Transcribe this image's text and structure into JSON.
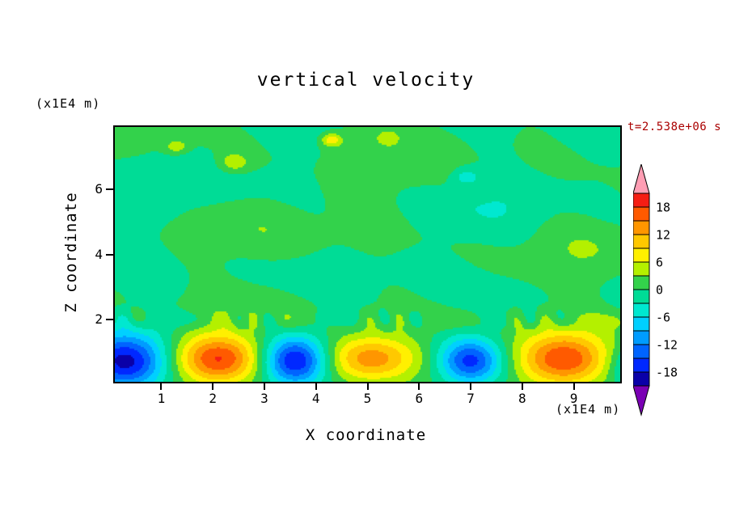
{
  "chart": {
    "title": "vertical velocity",
    "timestamp": "t=2.538e+06 s",
    "xlabel": "X coordinate",
    "ylabel": "Z coordinate",
    "x_unit": "(x1E4 m)",
    "y_unit": "(x1E4 m)"
  },
  "colors": {
    "timestamp": "#aa0000",
    "axis": "#000000",
    "frame": "#000000",
    "background": "#ffffff"
  },
  "chart_data": {
    "type": "heatmap",
    "subtype": "filled-contour",
    "title": "vertical velocity",
    "time_label": "t=2.538e+06 s",
    "xlabel": "X coordinate (x1E4 m)",
    "ylabel": "Z coordinate (x1E4 m)",
    "xlim": [
      0.1,
      9.9
    ],
    "ylim": [
      0.1,
      7.9
    ],
    "x_ticks": [
      1,
      2,
      3,
      4,
      5,
      6,
      7,
      8,
      9
    ],
    "y_ticks": [
      2,
      4,
      6
    ],
    "contour_interval": 3,
    "value_range": [
      -21,
      21
    ],
    "colorbar_labels": [
      18,
      12,
      6,
      0,
      -6,
      -12,
      -18
    ],
    "palette": [
      "#7a00b4",
      "#0a00a8",
      "#0028ff",
      "#0064ff",
      "#009cff",
      "#00d0ff",
      "#00e8d0",
      "#00dc96",
      "#33d24b",
      "#b4f000",
      "#fff000",
      "#ffc800",
      "#ff9600",
      "#ff5a00",
      "#f51e14",
      "#ff9eb4"
    ],
    "legend_position": "right",
    "grid": false,
    "description": "Vertical velocity field: near-zero (green) values above z=2 with weak patches of +/-3, and a row of alternating strong downdraft (blue, to about -20) and updraft (orange-red, to about +18) cells near the bottom boundary",
    "field": {
      "cells": [
        {
          "x": 0.3,
          "z": 0.7,
          "rx": 0.8,
          "rz": 0.85,
          "a": -19.5
        },
        {
          "x": 2.1,
          "z": 0.8,
          "rx": 0.85,
          "rz": 0.75,
          "a": 17.8
        },
        {
          "x": 3.6,
          "z": 0.75,
          "rx": 0.62,
          "rz": 0.72,
          "a": -19.0
        },
        {
          "x": 5.05,
          "z": 0.8,
          "rx": 0.92,
          "rz": 0.7,
          "a": 14.5
        },
        {
          "x": 7.0,
          "z": 0.75,
          "rx": 0.6,
          "rz": 0.68,
          "a": -16.0
        },
        {
          "x": 8.8,
          "z": 0.8,
          "rx": 0.88,
          "rz": 0.82,
          "a": 17.5
        },
        {
          "x": 10.15,
          "z": 0.6,
          "rx": 0.45,
          "rz": 0.6,
          "a": -8.0
        }
      ],
      "spots": [
        {
          "x": 4.3,
          "z": 7.5,
          "r": 0.2,
          "a": 8.0
        },
        {
          "x": 2.4,
          "z": 6.8,
          "r": 0.3,
          "a": 5.5
        },
        {
          "x": 1.3,
          "z": 7.3,
          "r": 0.22,
          "a": 5.0
        },
        {
          "x": 5.4,
          "z": 7.6,
          "r": 0.2,
          "a": 4.5
        },
        {
          "x": 6.9,
          "z": 6.4,
          "r": 0.28,
          "a": -4.5
        }
      ],
      "waves": [
        {
          "ax": 0.62,
          "az": 0.9,
          "p": 1.4,
          "bx": -0.35,
          "bz": 1.55,
          "q": 0.4,
          "amp": 1.9
        },
        {
          "ax": 1.35,
          "az": -0.75,
          "p": 2.1,
          "bx": 0.55,
          "bz": 0.85,
          "q": 0.9,
          "amp": 1.3
        },
        {
          "ax": 2.7,
          "az": 1.8,
          "p": 0.3,
          "bx": 0.6,
          "bz": -1.1,
          "q": 0.0,
          "amp": 0.8
        }
      ],
      "band": {
        "z": 2.0,
        "width": 0.3,
        "amp": 2.4,
        "fx": 6.5,
        "fm": 2.3,
        "fa": 2.2
      }
    }
  }
}
